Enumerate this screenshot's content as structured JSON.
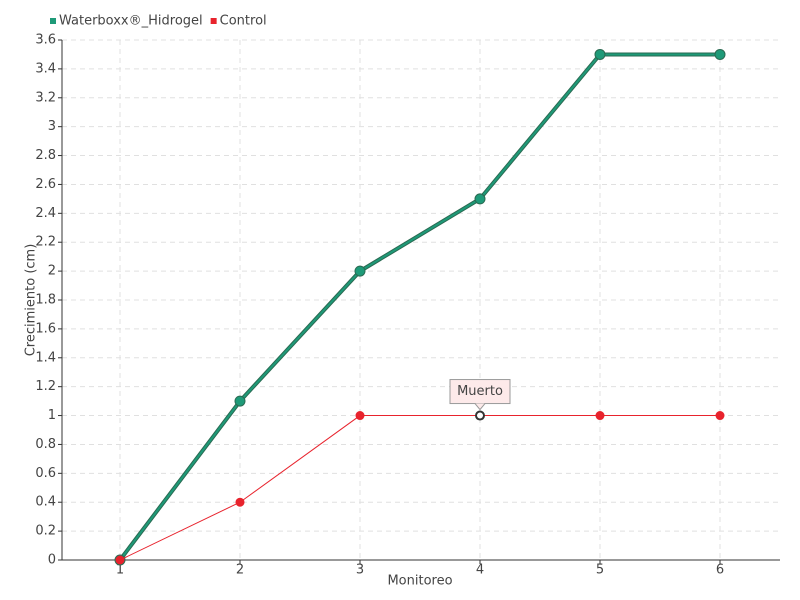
{
  "chart_data": {
    "type": "line",
    "x_label": "Monitoreo",
    "y_label": "Crecimiento (cm)",
    "categories": [
      "1",
      "2",
      "3",
      "4",
      "5",
      "6"
    ],
    "series": [
      {
        "name": "Waterboxx®_Hidrogel",
        "color": "#1e9a78",
        "values": [
          0,
          1.1,
          2.0,
          2.5,
          3.5,
          3.5
        ]
      },
      {
        "name": "Control",
        "color": "#e8232d",
        "values": [
          0,
          0.4,
          1.0,
          1.0,
          1.0,
          1.0
        ]
      }
    ],
    "annotations": [
      {
        "text": "Muerto",
        "series": "Control",
        "category": "4"
      }
    ],
    "ylim": [
      0,
      3.6
    ],
    "yticks": [
      0,
      0.2,
      0.4,
      0.6,
      0.8,
      1,
      1.2,
      1.4,
      1.6,
      1.8,
      2,
      2.2,
      2.4,
      2.6,
      2.8,
      3,
      3.2,
      3.4,
      3.6
    ],
    "grid": true,
    "legend": "top-left"
  }
}
